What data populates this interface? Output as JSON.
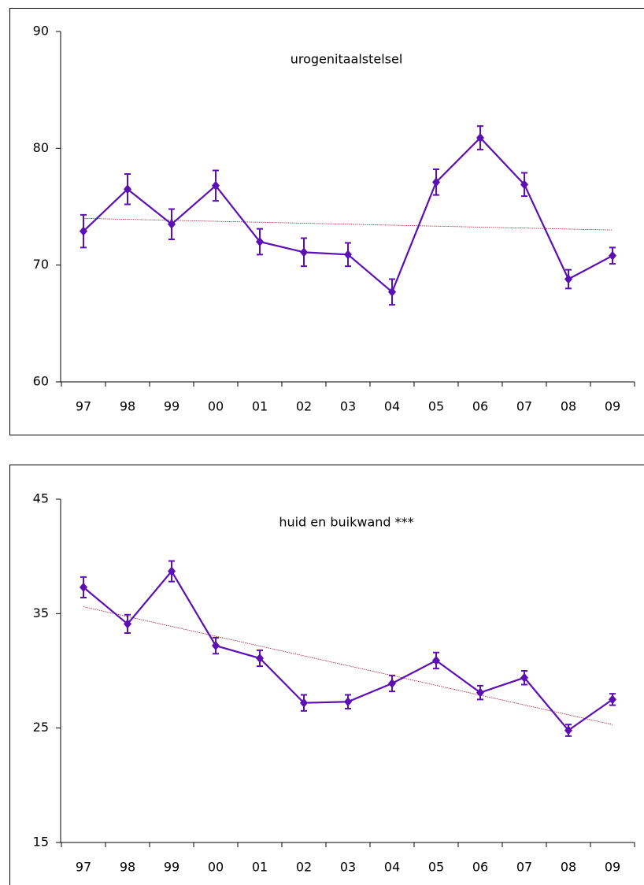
{
  "chart_data": [
    {
      "type": "line",
      "title": "urogenitaalstelsel",
      "categories": [
        "97",
        "98",
        "99",
        "00",
        "01",
        "02",
        "03",
        "04",
        "05",
        "06",
        "07",
        "08",
        "09"
      ],
      "series": [
        {
          "color": "#5b0fb5",
          "values": [
            72.9,
            76.5,
            73.5,
            76.8,
            72.0,
            71.1,
            70.9,
            67.7,
            77.1,
            80.9,
            76.9,
            68.8,
            70.8
          ],
          "errors": [
            1.4,
            1.3,
            1.3,
            1.3,
            1.1,
            1.2,
            1.0,
            1.1,
            1.1,
            1.0,
            1.0,
            0.8,
            0.7
          ]
        }
      ],
      "trend": {
        "color": "#a0203a",
        "values": [
          74.0,
          73.0
        ]
      },
      "ylim": [
        60,
        90
      ],
      "yticks": [
        60,
        70,
        80,
        90
      ]
    },
    {
      "type": "line",
      "title": "huid en buikwand ***",
      "categories": [
        "97",
        "98",
        "99",
        "00",
        "01",
        "02",
        "03",
        "04",
        "05",
        "06",
        "07",
        "08",
        "09"
      ],
      "series": [
        {
          "color": "#5b0fb5",
          "values": [
            37.3,
            34.1,
            38.7,
            32.2,
            31.1,
            27.2,
            27.3,
            28.9,
            30.9,
            28.1,
            29.4,
            24.8,
            27.5
          ],
          "errors": [
            0.9,
            0.8,
            0.9,
            0.7,
            0.7,
            0.7,
            0.6,
            0.7,
            0.7,
            0.6,
            0.6,
            0.5,
            0.5
          ]
        }
      ],
      "trend": {
        "color": "#a0203a",
        "values": [
          35.6,
          25.3
        ]
      },
      "ylim": [
        15,
        45
      ],
      "yticks": [
        15,
        25,
        35,
        45
      ]
    }
  ]
}
